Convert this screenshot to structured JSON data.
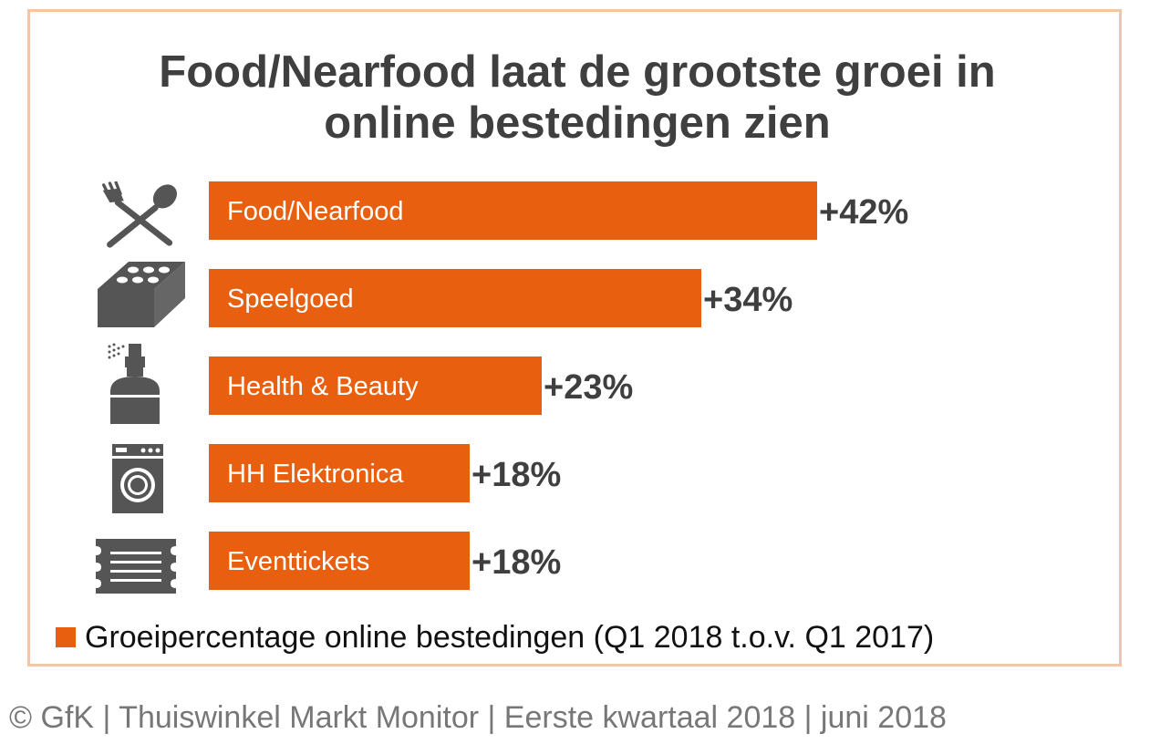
{
  "chart_data": {
    "type": "bar",
    "orientation": "horizontal",
    "title": "Food/Nearfood laat de grootste groei in online bestedingen zien",
    "title_lines": [
      "Food/Nearfood laat de grootste groei in",
      "online bestedingen zien"
    ],
    "categories": [
      "Food/Nearfood",
      "Speelgoed",
      "Health & Beauty",
      "HH Elektronica",
      "Eventtickets"
    ],
    "values": [
      42,
      34,
      23,
      18,
      18
    ],
    "value_labels": [
      "+42%",
      "+34%",
      "+23%",
      "+18%",
      "+18%"
    ],
    "icons": [
      "cutlery-icon",
      "toy-brick-icon",
      "perfume-bottle-icon",
      "washing-machine-icon",
      "ticket-icon"
    ],
    "series": [
      {
        "name": "Groeipercentage online bestedingen (Q1 2018 t.o.v. Q1 2017)",
        "values": [
          42,
          34,
          23,
          18,
          18
        ]
      }
    ],
    "legend": "Groeipercentage online bestedingen (Q1 2018 t.o.v. Q1 2017)",
    "legend_position": "bottom-left",
    "xlim": [
      0,
      42
    ],
    "grid": false,
    "xlabel": "",
    "ylabel": ""
  },
  "colors": {
    "bar": "#e8600f",
    "text_dark": "#3f3f3f",
    "icon": "#555555",
    "border": "#f3c6a5",
    "source_text": "#777777"
  },
  "footer": {
    "source": "© GfK | Thuiswinkel Markt Monitor | Eerste kwartaal 2018 | juni 2018"
  }
}
